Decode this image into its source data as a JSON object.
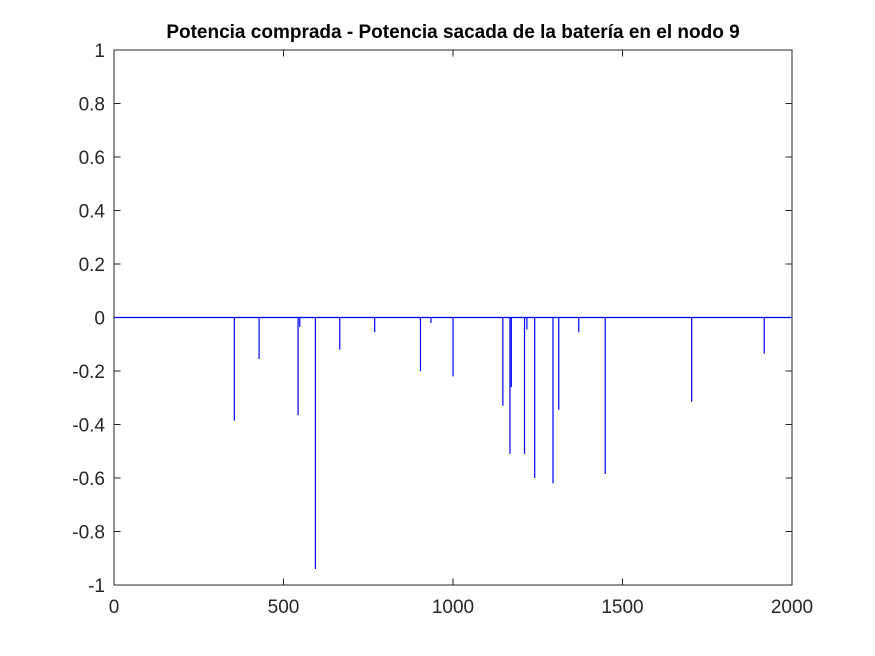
{
  "chart_data": {
    "type": "line",
    "title": "Potencia comprada - Potencia sacada de la batería en el nodo 9",
    "xlabel": "",
    "ylabel": "",
    "xlim": [
      0,
      2000
    ],
    "ylim": [
      -1,
      1
    ],
    "xticks": [
      0,
      500,
      1000,
      1500,
      2000
    ],
    "xtick_labels": [
      "0",
      "500",
      "1000",
      "1500",
      "2000"
    ],
    "yticks": [
      1,
      0.8,
      0.6,
      0.4,
      0.2,
      0,
      -0.2,
      -0.4,
      -0.6,
      -0.8,
      -1
    ],
    "ytick_labels": [
      "1",
      "0.8",
      "0.6",
      "0.4",
      "0.2",
      "0",
      "-0.2",
      "-0.4",
      "-0.6",
      "-0.8",
      "-1"
    ],
    "grid": false,
    "baseline": 0,
    "series": [
      {
        "color": "#0000ff",
        "x": [
          355,
          428,
          543,
          548,
          594,
          666,
          769,
          904,
          935,
          1000,
          1147,
          1168,
          1172,
          1211,
          1218,
          1241,
          1295,
          1312,
          1371,
          1449,
          1704,
          1918
        ],
        "values": [
          -0.385,
          -0.155,
          -0.365,
          -0.035,
          -0.94,
          -0.12,
          -0.055,
          -0.2,
          -0.02,
          -0.22,
          -0.33,
          -0.51,
          -0.26,
          -0.51,
          -0.045,
          -0.6,
          -0.62,
          -0.345,
          -0.055,
          -0.585,
          -0.315,
          -0.135
        ]
      }
    ]
  }
}
